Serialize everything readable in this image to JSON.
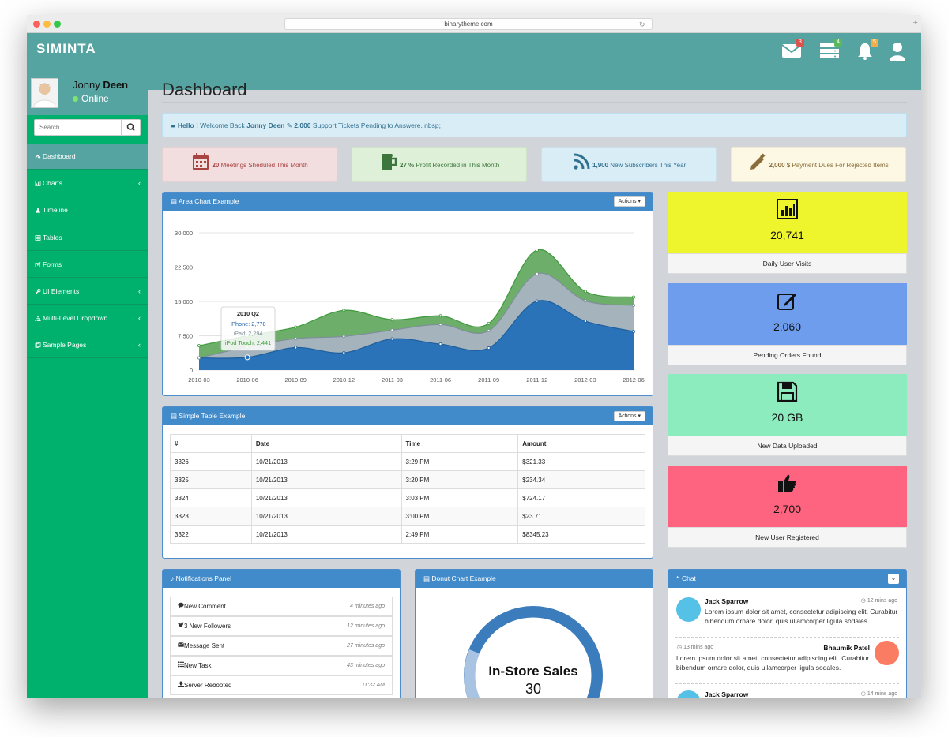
{
  "browser": {
    "url": "binarytheme.com"
  },
  "brand": "SIMINTA",
  "nav": {
    "mail_count": "3",
    "tasks_count": "4",
    "alerts_count": "5"
  },
  "user": {
    "first": "Jonny",
    "last": "Deen",
    "status": "Online"
  },
  "search": {
    "placeholder": "Search..."
  },
  "menu": [
    {
      "label": "Dashboard",
      "icon": "dashboard-icon",
      "active": true,
      "arrow": ""
    },
    {
      "label": "Charts",
      "icon": "bar-chart-icon",
      "arrow": "‹"
    },
    {
      "label": "Timeline",
      "icon": "flask-icon",
      "arrow": ""
    },
    {
      "label": "Tables",
      "icon": "table-icon",
      "arrow": ""
    },
    {
      "label": "Forms",
      "icon": "edit-icon",
      "arrow": ""
    },
    {
      "label": "UI Elements",
      "icon": "wrench-icon",
      "arrow": "‹"
    },
    {
      "label": "Multi-Level Dropdown",
      "icon": "sitemap-icon",
      "arrow": "‹"
    },
    {
      "label": "Sample Pages",
      "icon": "files-icon",
      "arrow": "‹"
    }
  ],
  "page": {
    "title": "Dashboard"
  },
  "welcome": {
    "hello": "Hello !",
    "welcome_back": "Welcome Back",
    "name": "Jonny Deen",
    "count": "2,000",
    "rest": "Support Tickets Pending to Answere. nbsp;"
  },
  "stats": [
    {
      "num": "20",
      "text": "Meetings Sheduled This Month",
      "bg": "#f2dede",
      "color": "#a94442",
      "icon": "calendar-icon"
    },
    {
      "num": "27 %",
      "text": "Profit Recorded in This Month",
      "bg": "#dff0d8",
      "color": "#3c763d",
      "icon": "beer-icon"
    },
    {
      "num": "1,900",
      "text": "New Subscribers This Year",
      "bg": "#d9edf7",
      "color": "#31708f",
      "icon": "rss-icon"
    },
    {
      "num": "2,000 $",
      "text": "Payment Dues For Rejected Items",
      "bg": "#fcf8e3",
      "color": "#8a6d3b",
      "icon": "pencil-icon"
    }
  ],
  "area_panel": {
    "title": "Area Chart Example",
    "actions": "Actions"
  },
  "chart_data": {
    "type": "area",
    "categories": [
      "2010-03",
      "2010-06",
      "2010-09",
      "2010-12",
      "2011-03",
      "2011-06",
      "2011-09",
      "2011-12",
      "2012-03",
      "2012-06"
    ],
    "ylim": [
      0,
      30000
    ],
    "yticks": [
      "30,000",
      "22,500",
      "15,000",
      "7,500",
      "0"
    ],
    "series": [
      {
        "name": "iPhone",
        "values": [
          2666,
          2778,
          4912,
          3767,
          6810,
          5670,
          4820,
          15073,
          10687,
          8432
        ]
      },
      {
        "name": "iPad",
        "values": [
          0,
          2294,
          1969,
          3597,
          1914,
          4293,
          3795,
          5967,
          4460,
          5713
        ]
      },
      {
        "name": "iPod Touch",
        "values": [
          2647,
          2441,
          2501,
          5689,
          2293,
          1881,
          1588,
          5175,
          2028,
          1791
        ]
      }
    ],
    "colors": [
      "#2a73b8",
      "#a4b3bc",
      "#6cae6a"
    ],
    "tooltip": {
      "title": "2010 Q2",
      "iphone": "iPhone: 2,778",
      "ipad": "iPad: 2,294",
      "ipod": "iPod Touch: 2,441"
    }
  },
  "tiles": [
    {
      "value": "20,741",
      "label": "Daily User Visits",
      "bg": "#eff52c",
      "icon": "bar-chart-icon"
    },
    {
      "value": "2,060",
      "label": "Pending Orders Found",
      "bg": "#6e9ded",
      "icon": "edit-icon"
    },
    {
      "value": "20 GB",
      "label": "New Data Uploaded",
      "bg": "#8decbd",
      "icon": "floppy-icon"
    },
    {
      "value": "2,700",
      "label": "New User Registered",
      "bg": "#fe6480",
      "icon": "thumbs-up-icon"
    }
  ],
  "table_panel": {
    "title": "Simple Table Example",
    "actions": "Actions",
    "headers": [
      "#",
      "Date",
      "Time",
      "Amount"
    ],
    "rows": [
      [
        "3326",
        "10/21/2013",
        "3:29 PM",
        "$321.33"
      ],
      [
        "3325",
        "10/21/2013",
        "3:20 PM",
        "$234.34"
      ],
      [
        "3324",
        "10/21/2013",
        "3:03 PM",
        "$724.17"
      ],
      [
        "3323",
        "10/21/2013",
        "3:00 PM",
        "$23.71"
      ],
      [
        "3322",
        "10/21/2013",
        "2:49 PM",
        "$8345.23"
      ]
    ]
  },
  "notifications": {
    "title": "Notifications Panel",
    "items": [
      {
        "label": "New Comment",
        "time": "4 minutes ago",
        "icon": "comment-icon"
      },
      {
        "label": "3 New Followers",
        "time": "12 minutes ago",
        "icon": "twitter-icon"
      },
      {
        "label": "Message Sent",
        "time": "27 minutes ago",
        "icon": "envelope-icon"
      },
      {
        "label": "New Task",
        "time": "43 minutes ago",
        "icon": "tasks-icon"
      },
      {
        "label": "Server Rebooted",
        "time": "11:32 AM",
        "icon": "upload-icon"
      }
    ]
  },
  "donut": {
    "title": "Donut Chart Example",
    "label": "In-Store Sales",
    "value": "30"
  },
  "chat": {
    "title": "Chat",
    "messages": [
      {
        "name": "Jack Sparrow",
        "time": "12 mins ago",
        "text": "Lorem ipsum dolor sit amet, consectetur adipiscing elit. Curabitur bibendum ornare dolor, quis ullamcorper ligula sodales.",
        "side": "left"
      },
      {
        "name": "Bhaumik Patel",
        "time": "13 mins ago",
        "text": "Lorem ipsum dolor sit amet, consectetur adipiscing elit. Curabitur bibendum ornare dolor, quis ullamcorper ligula sodales.",
        "side": "right"
      },
      {
        "name": "Jack Sparrow",
        "time": "14 mins ago",
        "text": "",
        "side": "left"
      }
    ]
  }
}
